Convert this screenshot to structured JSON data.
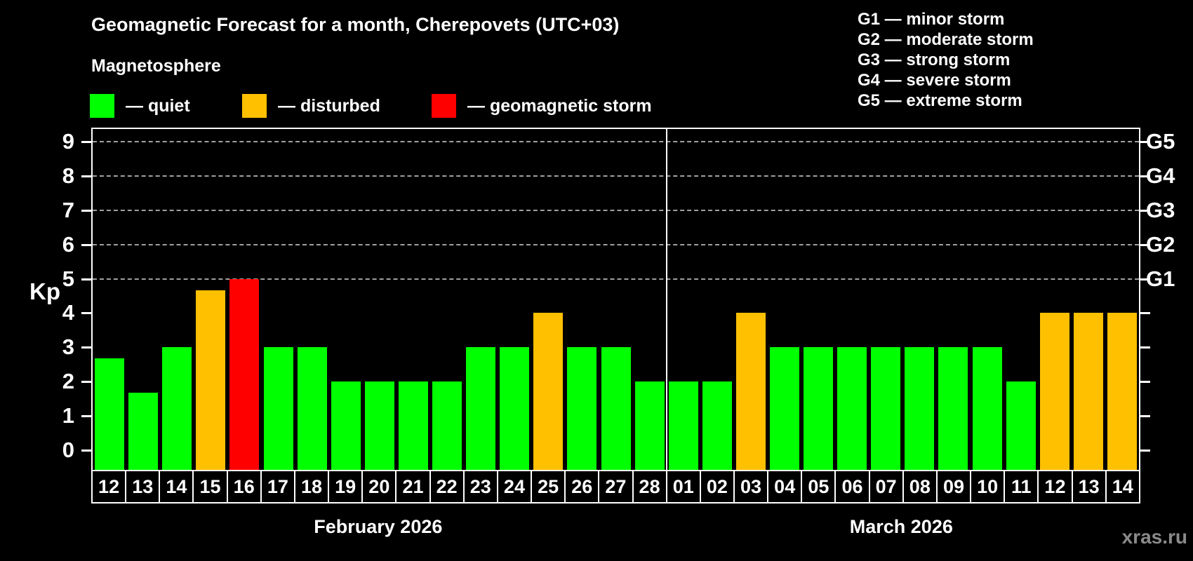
{
  "header": {
    "title": "Geomagnetic Forecast for a month, Cherepovets (UTC+03)",
    "subtitle": "Magnetosphere"
  },
  "legend": {
    "items": [
      {
        "key": "quiet",
        "label": "— quiet",
        "color": "#00ff00"
      },
      {
        "key": "disturbed",
        "label": "— disturbed",
        "color": "#ffc000"
      },
      {
        "key": "storm",
        "label": "— geomagnetic storm",
        "color": "#ff0000"
      }
    ]
  },
  "storm_scale_legend": {
    "items": [
      "G1 — minor storm",
      "G2 — moderate storm",
      "G3 — strong storm",
      "G4 — severe storm",
      "G5 — extreme storm"
    ]
  },
  "watermark": "xras.ru",
  "chart_data": {
    "type": "bar",
    "ylabel": "Kp",
    "ylim": [
      0,
      9.6
    ],
    "y_ticks": [
      0,
      1,
      2,
      3,
      4,
      5,
      6,
      7,
      8,
      9
    ],
    "grid": "horizontal dashed lines at Kp 5..9",
    "legend_position": "top-left",
    "right_axis_labels": [
      {
        "label": "G1",
        "kp": 5
      },
      {
        "label": "G2",
        "kp": 6
      },
      {
        "label": "G3",
        "kp": 7
      },
      {
        "label": "G4",
        "kp": 8
      },
      {
        "label": "G5",
        "kp": 9
      }
    ],
    "colors": {
      "quiet": "#00ff00",
      "disturbed": "#ffc000",
      "storm": "#ff0000"
    },
    "months": [
      {
        "label": "February 2026",
        "days": 17
      },
      {
        "label": "March 2026",
        "days": 14
      }
    ],
    "bars": [
      {
        "day": "12",
        "kp": 2.67,
        "state": "quiet"
      },
      {
        "day": "13",
        "kp": 1.67,
        "state": "quiet"
      },
      {
        "day": "14",
        "kp": 3,
        "state": "quiet"
      },
      {
        "day": "15",
        "kp": 4.67,
        "state": "disturbed"
      },
      {
        "day": "16",
        "kp": 5,
        "state": "storm"
      },
      {
        "day": "17",
        "kp": 3,
        "state": "quiet"
      },
      {
        "day": "18",
        "kp": 3,
        "state": "quiet"
      },
      {
        "day": "19",
        "kp": 2,
        "state": "quiet"
      },
      {
        "day": "20",
        "kp": 2,
        "state": "quiet"
      },
      {
        "day": "21",
        "kp": 2,
        "state": "quiet"
      },
      {
        "day": "22",
        "kp": 2,
        "state": "quiet"
      },
      {
        "day": "23",
        "kp": 3,
        "state": "quiet"
      },
      {
        "day": "24",
        "kp": 3,
        "state": "quiet"
      },
      {
        "day": "25",
        "kp": 4,
        "state": "disturbed"
      },
      {
        "day": "26",
        "kp": 3,
        "state": "quiet"
      },
      {
        "day": "27",
        "kp": 3,
        "state": "quiet"
      },
      {
        "day": "28",
        "kp": 2,
        "state": "quiet"
      },
      {
        "day": "01",
        "kp": 2,
        "state": "quiet"
      },
      {
        "day": "02",
        "kp": 2,
        "state": "quiet"
      },
      {
        "day": "03",
        "kp": 4,
        "state": "disturbed"
      },
      {
        "day": "04",
        "kp": 3,
        "state": "quiet"
      },
      {
        "day": "05",
        "kp": 3,
        "state": "quiet"
      },
      {
        "day": "06",
        "kp": 3,
        "state": "quiet"
      },
      {
        "day": "07",
        "kp": 3,
        "state": "quiet"
      },
      {
        "day": "08",
        "kp": 3,
        "state": "quiet"
      },
      {
        "day": "09",
        "kp": 3,
        "state": "quiet"
      },
      {
        "day": "10",
        "kp": 3,
        "state": "quiet"
      },
      {
        "day": "11",
        "kp": 2,
        "state": "quiet"
      },
      {
        "day": "12",
        "kp": 4,
        "state": "disturbed"
      },
      {
        "day": "13",
        "kp": 4,
        "state": "disturbed"
      },
      {
        "day": "14",
        "kp": 4,
        "state": "disturbed"
      }
    ]
  }
}
